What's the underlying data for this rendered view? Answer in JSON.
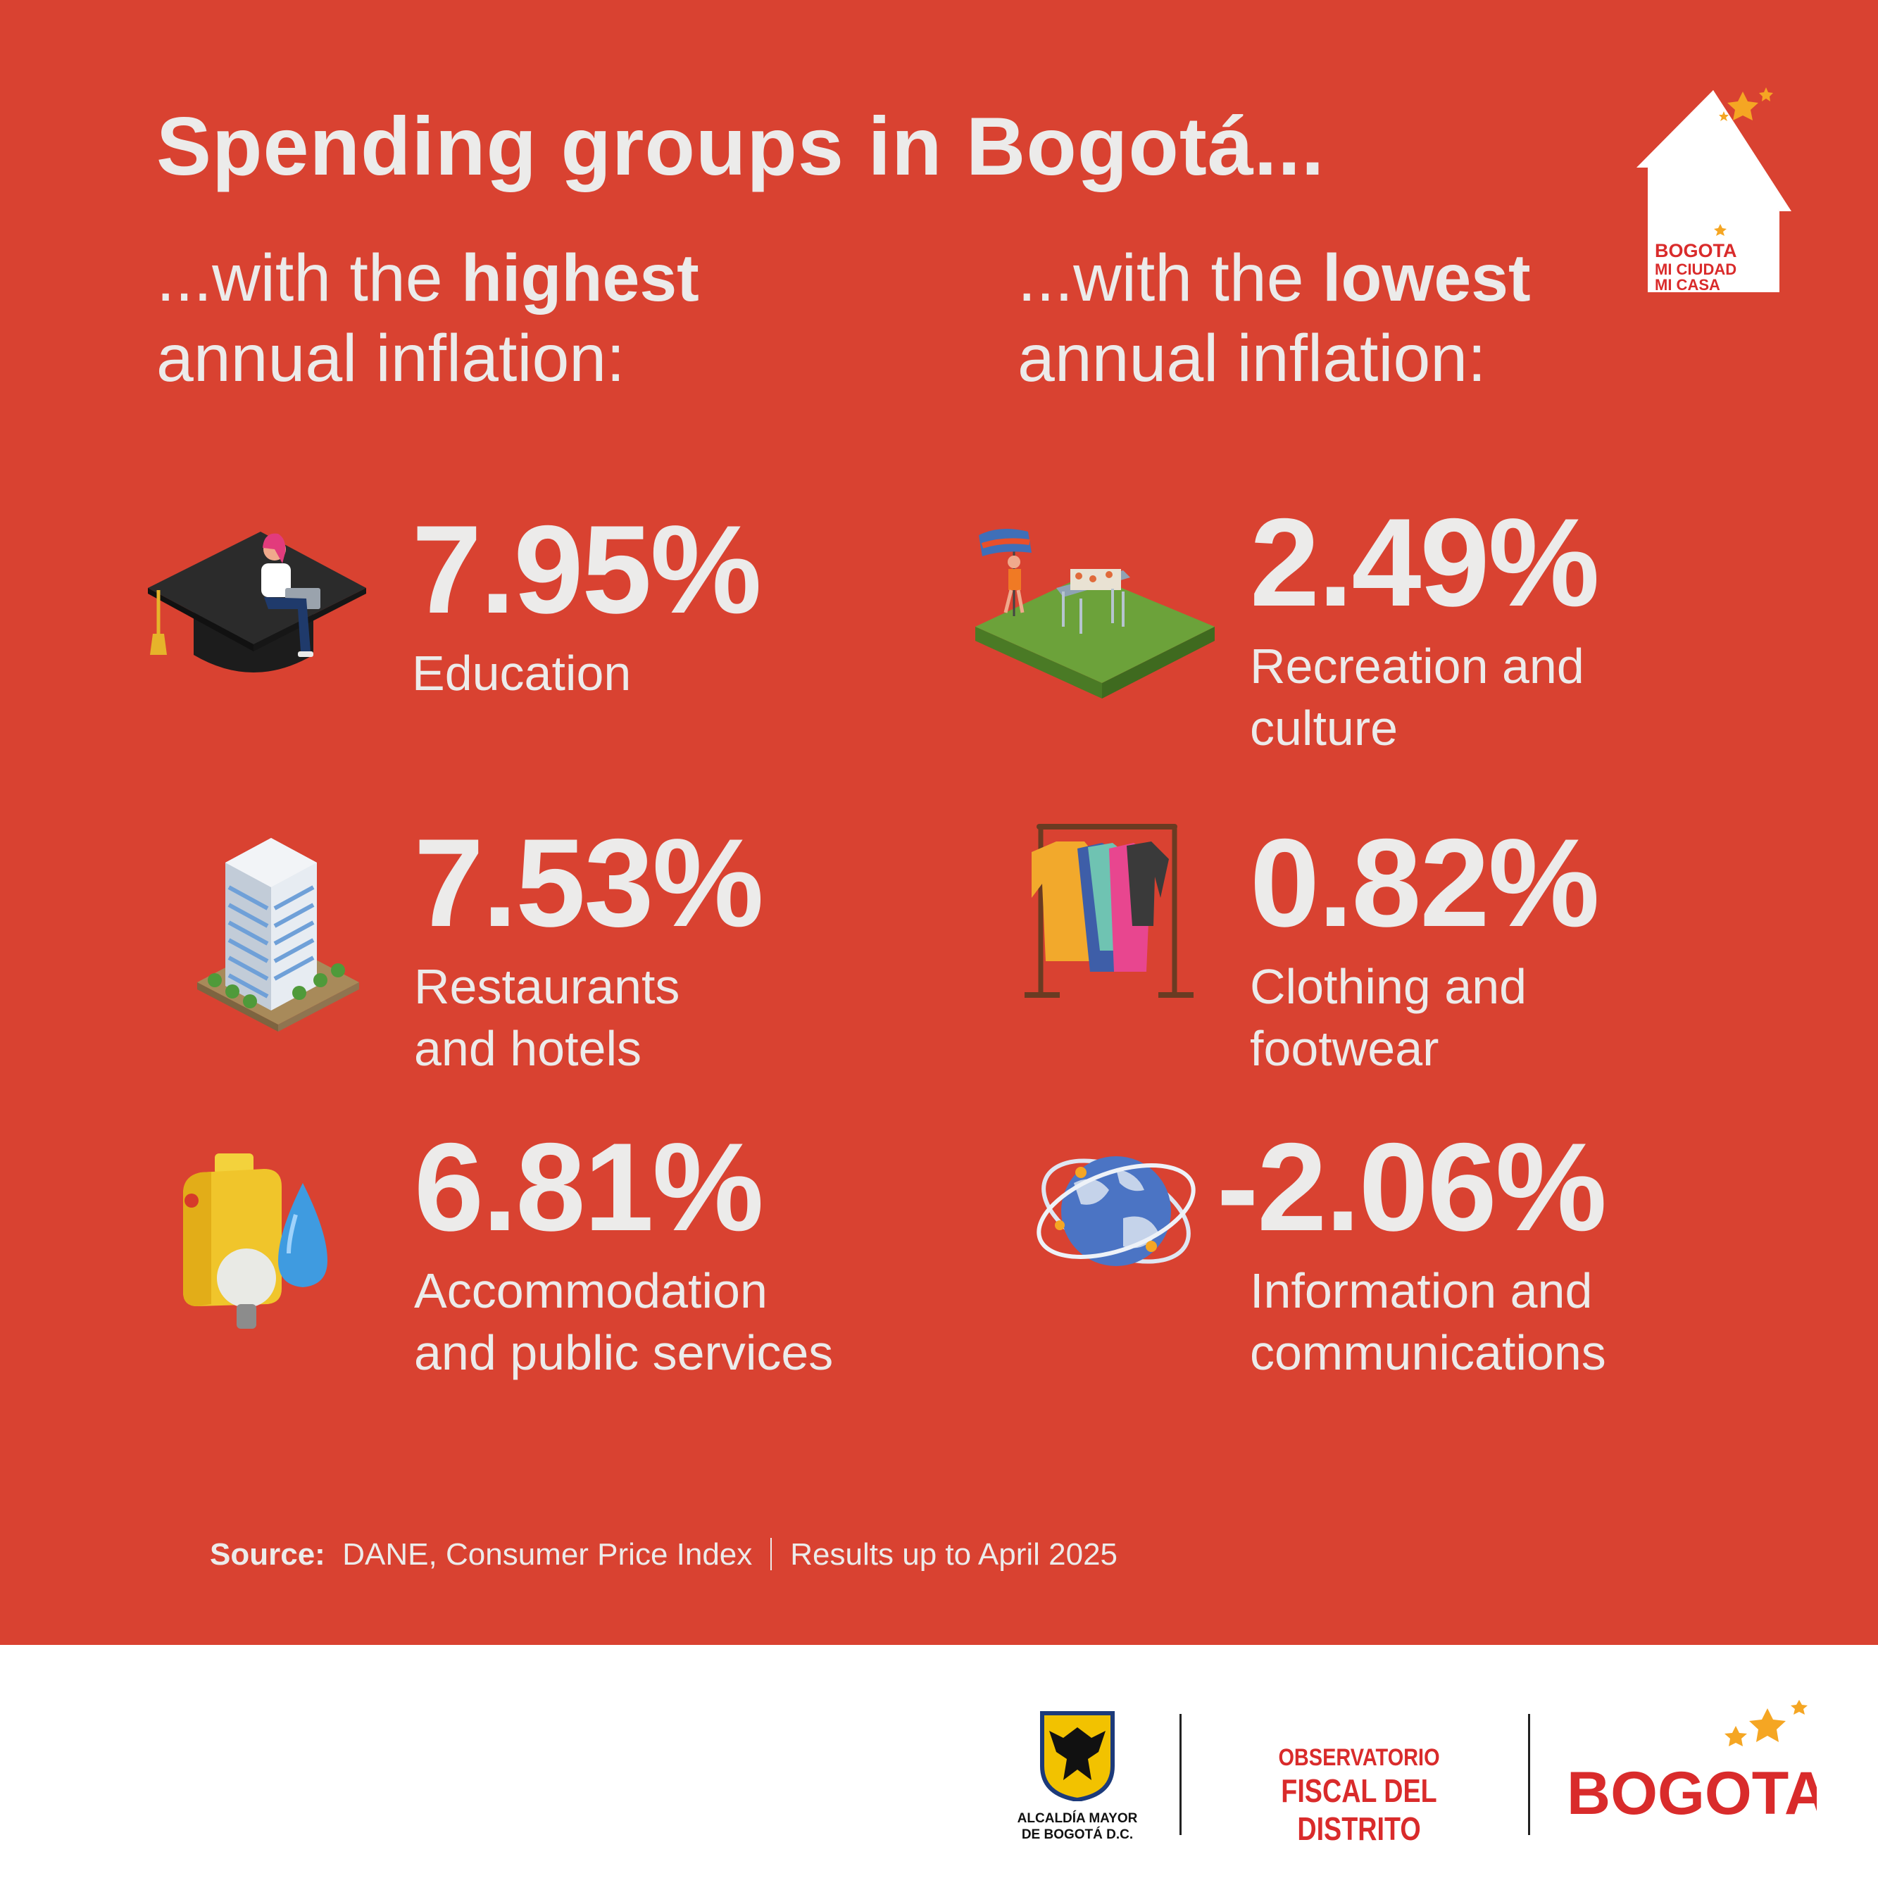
{
  "title": "Spending groups in Bogotá...",
  "highest": {
    "prefix": "...with the",
    "emphasis": "highest",
    "line2": "annual inflation:",
    "items": [
      {
        "value": "7.95%",
        "label_line1": "Education",
        "label_line2": "",
        "icon": "graduation-cap-icon"
      },
      {
        "value": "7.53%",
        "label_line1": "Restaurants",
        "label_line2": "and hotels",
        "icon": "hotel-building-icon"
      },
      {
        "value": "6.81%",
        "label_line1": "Accommodation",
        "label_line2": "and public services",
        "icon": "utilities-icon"
      }
    ]
  },
  "lowest": {
    "prefix": "...with the",
    "emphasis": "lowest",
    "line2": "annual inflation:",
    "items": [
      {
        "value": "2.49%",
        "label_line1": "Recreation and",
        "label_line2": "culture",
        "icon": "recreation-park-icon"
      },
      {
        "value": "0.82%",
        "label_line1": "Clothing and",
        "label_line2": "footwear",
        "icon": "clothing-rack-icon"
      },
      {
        "value": "-2.06%",
        "label_line1": "Information and",
        "label_line2": "communications",
        "icon": "globe-network-icon"
      }
    ]
  },
  "source": {
    "label": "Source:",
    "text": "DANE, Consumer Price Index",
    "note": "Results up to April 2025"
  },
  "badge": {
    "line1": "BOGOTA",
    "line2": "MI CIUDAD",
    "line3": "MI CASA"
  },
  "footer": {
    "alcaldia_line1": "ALCALDÍA MAYOR",
    "alcaldia_line2": "DE BOGOTÁ D.C.",
    "observatorio_line1": "OBSERVATORIO",
    "observatorio_line2": "FISCAL DEL DISTRITO",
    "bogota": "BOGOTA"
  },
  "colors": {
    "background": "#d94231",
    "text": "#ecebea",
    "brand_red": "#d92b2b",
    "star": "#f5a623"
  }
}
